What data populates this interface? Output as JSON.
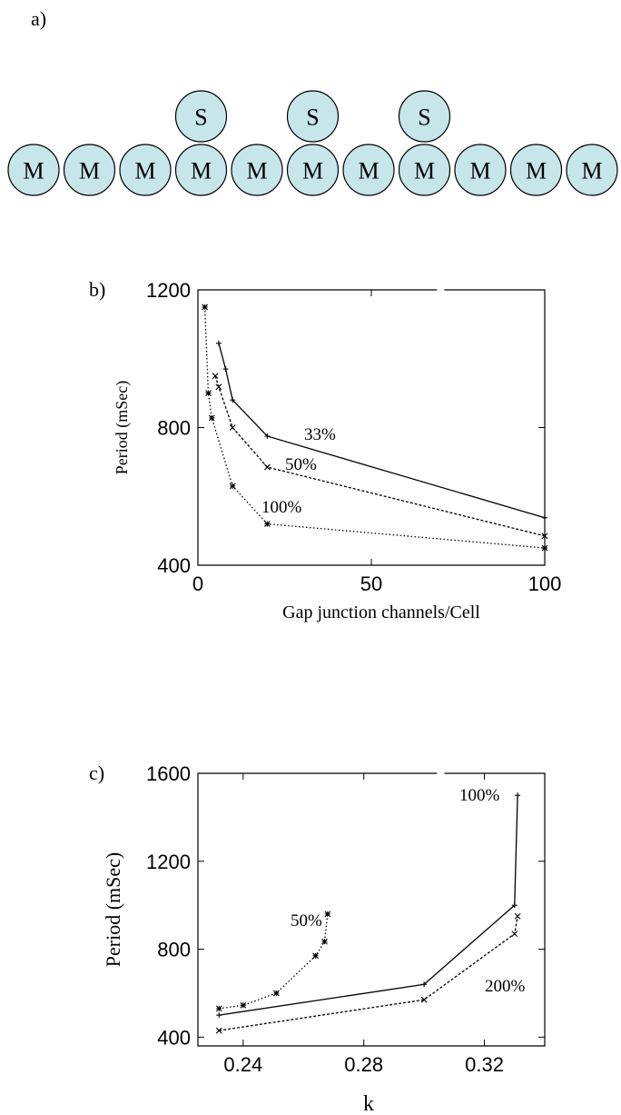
{
  "panel_a": {
    "label": "a)",
    "top_cells": [
      "S",
      "S",
      "S"
    ],
    "bottom_cells": [
      "M",
      "M",
      "M",
      "M",
      "M",
      "M",
      "M",
      "M",
      "M",
      "M",
      "M"
    ]
  },
  "chart_data": [
    {
      "panel_label": "b)",
      "type": "line",
      "xlabel": "Gap junction channels/Cell",
      "ylabel": "Period (mSec)",
      "xlim": [
        0,
        100
      ],
      "ylim": [
        400,
        1200
      ],
      "xticks": [
        "0",
        "50",
        "100"
      ],
      "yticks": [
        "400",
        "800",
        "1200"
      ],
      "grid": false,
      "series": [
        {
          "name": "33%",
          "style": "solid",
          "marker": "plus",
          "x": [
            6,
            8,
            10,
            20,
            100
          ],
          "y": [
            1045,
            970,
            880,
            775,
            538
          ]
        },
        {
          "name": "50%",
          "style": "dashed",
          "marker": "cross",
          "x": [
            5,
            6,
            10,
            20,
            100
          ],
          "y": [
            950,
            918,
            800,
            685,
            485
          ]
        },
        {
          "name": "100%",
          "style": "dotted",
          "marker": "star",
          "x": [
            2,
            3,
            4,
            10,
            20,
            100
          ],
          "y": [
            1150,
            900,
            828,
            630,
            520,
            450
          ]
        }
      ]
    },
    {
      "panel_label": "c)",
      "type": "line",
      "xlabel": "k",
      "ylabel": "Period (mSec)",
      "xlim": [
        0.225,
        0.34
      ],
      "ylim": [
        360,
        1600
      ],
      "xticks": [
        "0.24",
        "0.28",
        "0.32"
      ],
      "yticks": [
        "400",
        "800",
        "1200",
        "1600"
      ],
      "grid": false,
      "series": [
        {
          "name": "100%",
          "style": "solid",
          "marker": "plus",
          "x": [
            0.232,
            0.3,
            0.33,
            0.331
          ],
          "y": [
            500,
            640,
            1000,
            1500
          ]
        },
        {
          "name": "200%",
          "style": "dashed",
          "marker": "cross",
          "x": [
            0.232,
            0.3,
            0.33,
            0.331
          ],
          "y": [
            430,
            570,
            870,
            950
          ]
        },
        {
          "name": "50%",
          "style": "dotted",
          "marker": "star",
          "x": [
            0.232,
            0.24,
            0.251,
            0.264,
            0.267,
            0.268
          ],
          "y": [
            530,
            545,
            600,
            770,
            835,
            960
          ]
        }
      ]
    }
  ]
}
